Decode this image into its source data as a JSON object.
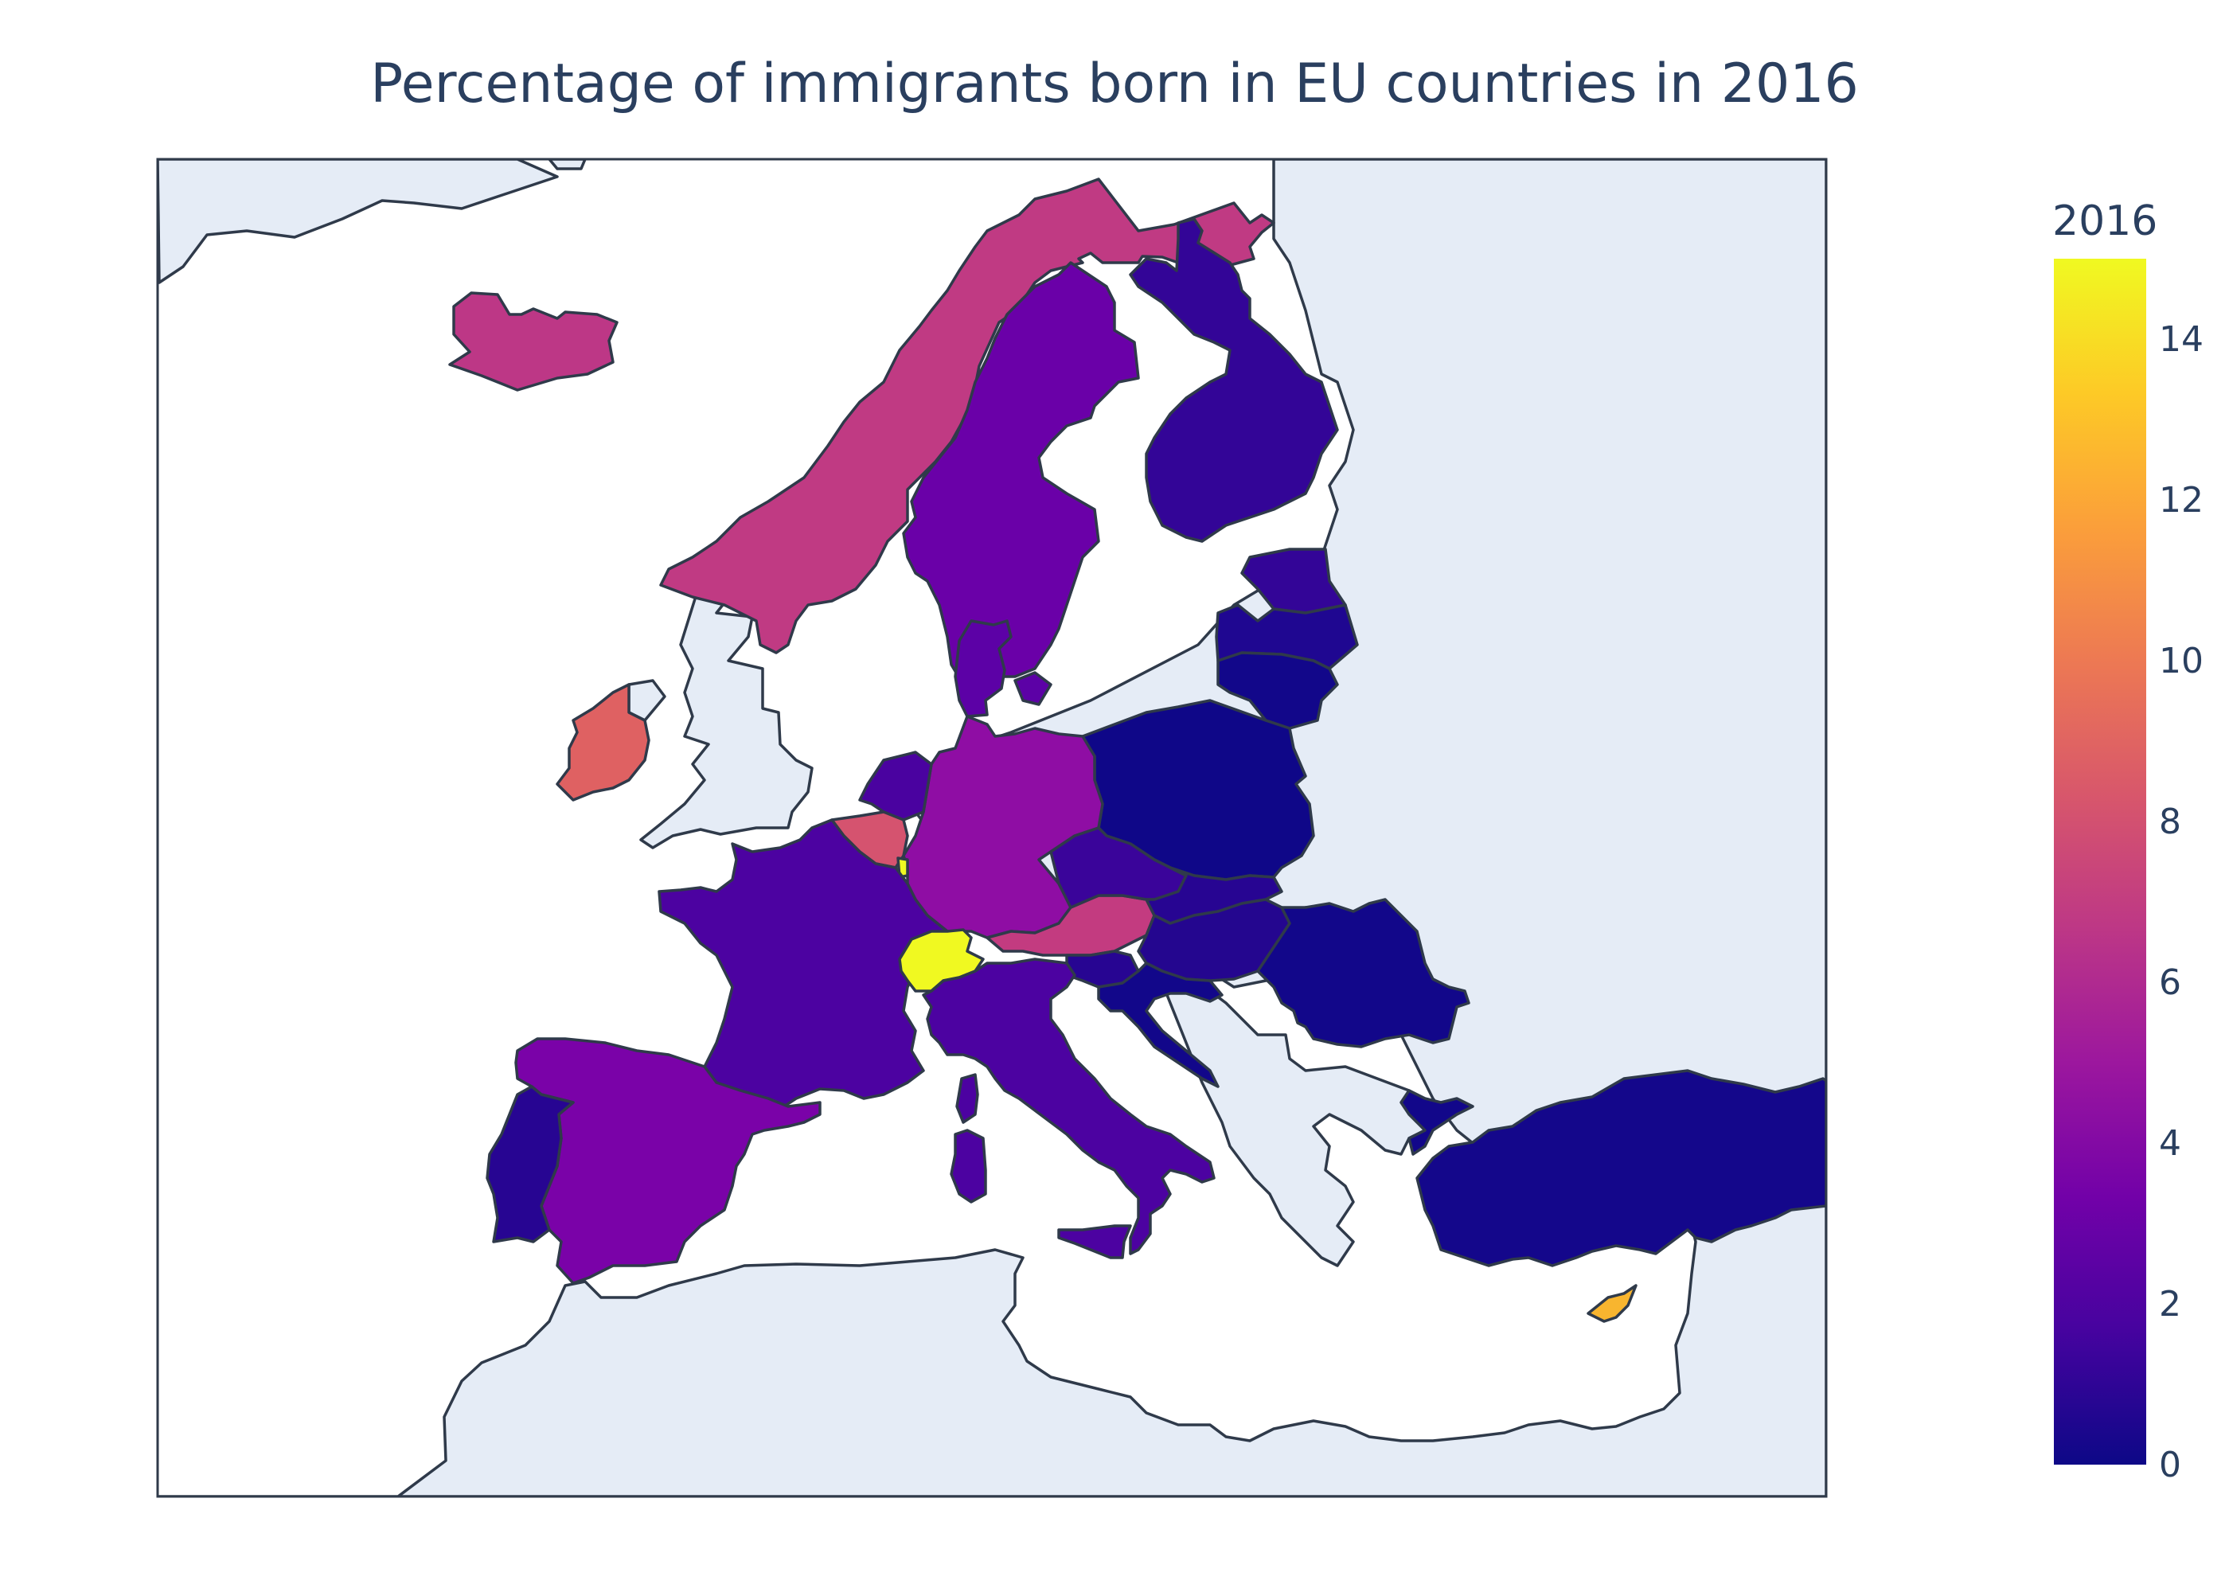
{
  "chart_data": {
    "type": "choropleth",
    "title": "Percentage of immigrants born in EU countries in 2016",
    "colorbar": {
      "title": "2016",
      "range": [
        0,
        15
      ],
      "ticks": [
        "0",
        "2",
        "4",
        "6",
        "8",
        "10",
        "12",
        "14"
      ],
      "colorscale": "Plasma",
      "colors": [
        "#0d0887",
        "#46039f",
        "#7201a8",
        "#9c179e",
        "#bd3786",
        "#d8576b",
        "#ed7953",
        "#fb9f3a",
        "#fdca26",
        "#f0f921"
      ]
    },
    "regions": [
      {
        "name": "Switzerland",
        "value": 15.0
      },
      {
        "name": "Cyprus",
        "value": 13.0
      },
      {
        "name": "Ireland",
        "value": 9.0
      },
      {
        "name": "Belgium",
        "value": 8.0
      },
      {
        "name": "Luxembourg",
        "value": 15.0
      },
      {
        "name": "Austria",
        "value": 7.0
      },
      {
        "name": "Norway",
        "value": 6.5
      },
      {
        "name": "Iceland",
        "value": 6.5
      },
      {
        "name": "Germany",
        "value": 5.0
      },
      {
        "name": "Spain",
        "value": 4.5
      },
      {
        "name": "Sweden",
        "value": 4.0
      },
      {
        "name": "Denmark",
        "value": 3.5
      },
      {
        "name": "Netherlands",
        "value": 3.0
      },
      {
        "name": "France",
        "value": 3.0
      },
      {
        "name": "Italy",
        "value": 3.0
      },
      {
        "name": "Czech Republic",
        "value": 2.5
      },
      {
        "name": "Finland",
        "value": 2.0
      },
      {
        "name": "Estonia",
        "value": 2.0
      },
      {
        "name": "Slovakia",
        "value": 1.5
      },
      {
        "name": "Hungary",
        "value": 1.5
      },
      {
        "name": "Portugal",
        "value": 1.5
      },
      {
        "name": "Slovenia",
        "value": 1.5
      },
      {
        "name": "Latvia",
        "value": 0.8
      },
      {
        "name": "Lithuania",
        "value": 0.5
      },
      {
        "name": "Poland",
        "value": 0.5
      },
      {
        "name": "Romania",
        "value": 0.5
      },
      {
        "name": "Croatia",
        "value": 0.5
      },
      {
        "name": "Bulgaria",
        "value": 0.5
      },
      {
        "name": "Turkey",
        "value": 0.3
      },
      {
        "name": "Malta",
        "value": 1.5
      }
    ]
  }
}
